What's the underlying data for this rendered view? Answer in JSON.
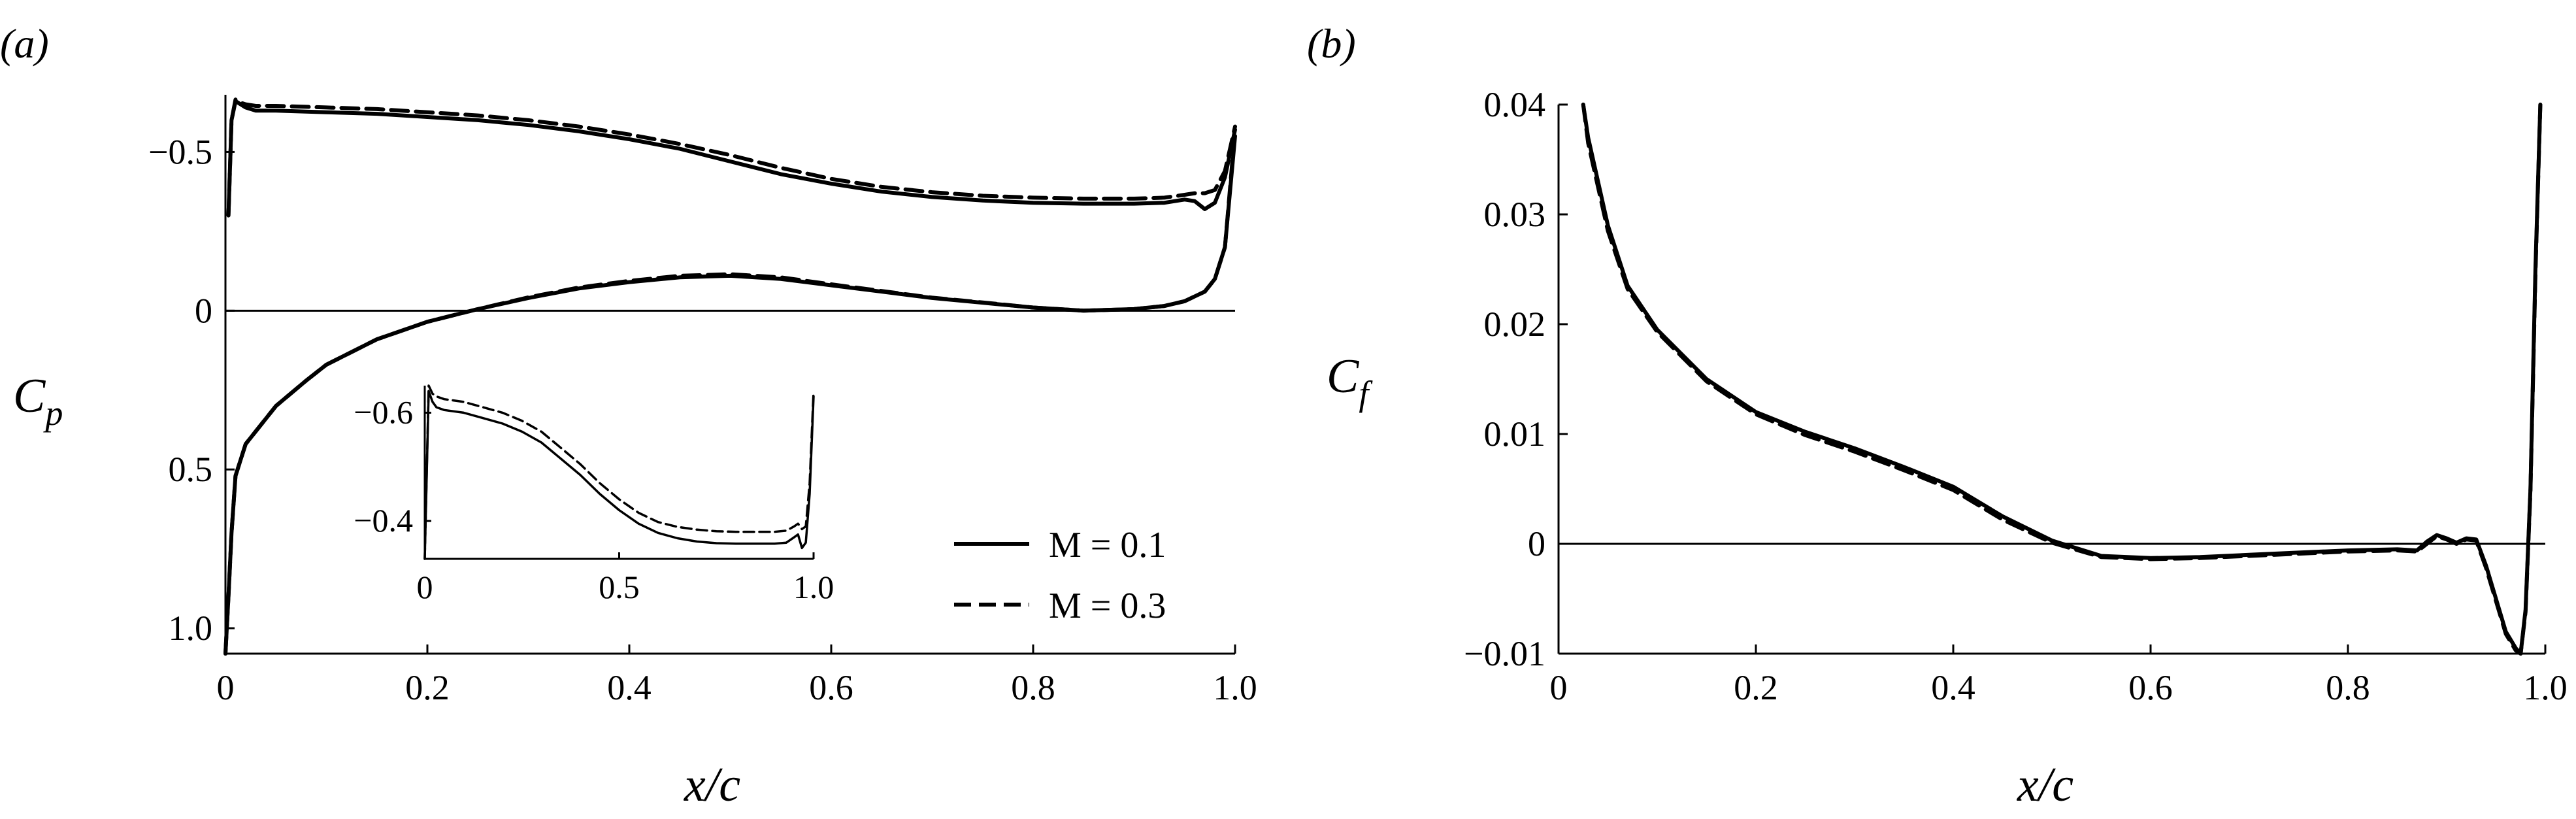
{
  "chart_data": [
    {
      "id": "a",
      "panel_label": "(a)",
      "type": "line",
      "xlabel": "x/c",
      "ylabel": "Cp",
      "xlim": [
        0,
        1.0
      ],
      "ylim": [
        1.08,
        -0.68
      ],
      "y_inverted": true,
      "x_ticks": [
        {
          "value": 0,
          "label": "0"
        },
        {
          "value": 0.2,
          "label": "0.2"
        },
        {
          "value": 0.4,
          "label": "0.4"
        },
        {
          "value": 0.6,
          "label": "0.6"
        },
        {
          "value": 0.8,
          "label": "0.8"
        },
        {
          "value": 1.0,
          "label": "1.0"
        }
      ],
      "y_ticks": [
        {
          "value": -0.5,
          "label": "−0.5"
        },
        {
          "value": 0,
          "label": "0"
        },
        {
          "value": 0.5,
          "label": "0.5"
        },
        {
          "value": 1.0,
          "label": "1.0"
        }
      ],
      "reference_lines": [
        {
          "axis": "y",
          "value": 0
        }
      ],
      "legend": {
        "placement": "bottom-right",
        "entries": [
          {
            "label": "M = 0.1",
            "dash": "solid"
          },
          {
            "label": "M = 0.3",
            "dash": "dashed"
          }
        ]
      },
      "series": [
        {
          "name": "M = 0.1",
          "surface": "suction",
          "dash": "solid",
          "x": [
            0.003,
            0.006,
            0.01,
            0.015,
            0.02,
            0.03,
            0.05,
            0.1,
            0.15,
            0.2,
            0.25,
            0.3,
            0.35,
            0.4,
            0.45,
            0.5,
            0.55,
            0.6,
            0.65,
            0.7,
            0.75,
            0.8,
            0.85,
            0.9,
            0.93,
            0.95,
            0.96,
            0.97,
            0.98,
            0.99,
            1.0
          ],
          "y": [
            -0.3,
            -0.6,
            -0.66,
            -0.65,
            -0.64,
            -0.63,
            -0.63,
            -0.625,
            -0.62,
            -0.61,
            -0.6,
            -0.585,
            -0.565,
            -0.54,
            -0.51,
            -0.47,
            -0.43,
            -0.4,
            -0.375,
            -0.358,
            -0.347,
            -0.34,
            -0.337,
            -0.337,
            -0.34,
            -0.35,
            -0.345,
            -0.32,
            -0.34,
            -0.42,
            -0.57
          ]
        },
        {
          "name": "M = 0.3",
          "surface": "suction",
          "dash": "dashed",
          "x": [
            0.003,
            0.006,
            0.01,
            0.015,
            0.02,
            0.03,
            0.05,
            0.1,
            0.15,
            0.2,
            0.25,
            0.3,
            0.35,
            0.4,
            0.45,
            0.5,
            0.55,
            0.6,
            0.65,
            0.7,
            0.75,
            0.8,
            0.85,
            0.9,
            0.93,
            0.95,
            0.96,
            0.97,
            0.98,
            0.99,
            1.0
          ],
          "y": [
            -0.3,
            -0.6,
            -0.665,
            -0.655,
            -0.65,
            -0.645,
            -0.645,
            -0.64,
            -0.635,
            -0.625,
            -0.615,
            -0.6,
            -0.58,
            -0.555,
            -0.525,
            -0.49,
            -0.45,
            -0.415,
            -0.39,
            -0.373,
            -0.362,
            -0.356,
            -0.353,
            -0.353,
            -0.356,
            -0.365,
            -0.37,
            -0.37,
            -0.38,
            -0.44,
            -0.58
          ]
        },
        {
          "name": "M = 0.1",
          "surface": "pressure",
          "dash": "solid",
          "x": [
            0.0,
            0.003,
            0.006,
            0.01,
            0.02,
            0.03,
            0.05,
            0.08,
            0.1,
            0.15,
            0.2,
            0.25,
            0.3,
            0.35,
            0.4,
            0.45,
            0.5,
            0.55,
            0.6,
            0.65,
            0.7,
            0.75,
            0.8,
            0.85,
            0.9,
            0.93,
            0.95,
            0.97,
            0.98,
            0.99,
            1.0
          ],
          "y": [
            1.08,
            0.9,
            0.7,
            0.52,
            0.42,
            0.38,
            0.3,
            0.22,
            0.17,
            0.09,
            0.035,
            -0.005,
            -0.04,
            -0.07,
            -0.09,
            -0.105,
            -0.11,
            -0.1,
            -0.08,
            -0.06,
            -0.04,
            -0.025,
            -0.01,
            0.0,
            -0.005,
            -0.015,
            -0.03,
            -0.06,
            -0.1,
            -0.2,
            -0.55
          ]
        },
        {
          "name": "M = 0.3",
          "surface": "pressure",
          "dash": "dashed",
          "x": [
            0.0,
            0.003,
            0.006,
            0.01,
            0.02,
            0.03,
            0.05,
            0.08,
            0.1,
            0.15,
            0.2,
            0.25,
            0.3,
            0.35,
            0.4,
            0.45,
            0.5,
            0.55,
            0.6,
            0.65,
            0.7,
            0.75,
            0.8,
            0.85,
            0.9,
            0.93,
            0.95,
            0.97,
            0.98,
            0.99,
            1.0
          ],
          "y": [
            1.08,
            0.9,
            0.7,
            0.52,
            0.42,
            0.38,
            0.3,
            0.22,
            0.17,
            0.09,
            0.035,
            -0.005,
            -0.042,
            -0.073,
            -0.094,
            -0.11,
            -0.115,
            -0.105,
            -0.083,
            -0.062,
            -0.041,
            -0.026,
            -0.01,
            0.0,
            -0.005,
            -0.015,
            -0.03,
            -0.06,
            -0.1,
            -0.2,
            -0.57
          ]
        }
      ],
      "inset": {
        "xlim": [
          0,
          1.0
        ],
        "ylim": [
          -0.33,
          -0.65
        ],
        "y_inverted": true,
        "x_ticks": [
          {
            "value": 0,
            "label": "0"
          },
          {
            "value": 0.5,
            "label": "0.5"
          },
          {
            "value": 1.0,
            "label": "1.0"
          }
        ],
        "y_ticks": [
          {
            "value": -0.6,
            "label": "−0.6"
          },
          {
            "value": -0.4,
            "label": "−0.4"
          }
        ],
        "series": [
          {
            "name": "M = 0.1",
            "dash": "solid",
            "x": [
              0.0,
              0.01,
              0.02,
              0.03,
              0.05,
              0.1,
              0.15,
              0.2,
              0.25,
              0.3,
              0.35,
              0.4,
              0.45,
              0.5,
              0.55,
              0.6,
              0.65,
              0.7,
              0.75,
              0.8,
              0.85,
              0.9,
              0.93,
              0.95,
              0.96,
              0.97,
              0.98,
              0.99,
              1.0
            ],
            "y": [
              -0.33,
              -0.64,
              -0.62,
              -0.61,
              -0.605,
              -0.6,
              -0.59,
              -0.58,
              -0.565,
              -0.545,
              -0.515,
              -0.485,
              -0.45,
              -0.42,
              -0.395,
              -0.378,
              -0.368,
              -0.362,
              -0.359,
              -0.358,
              -0.358,
              -0.358,
              -0.36,
              -0.37,
              -0.375,
              -0.35,
              -0.36,
              -0.45,
              -0.63
            ]
          },
          {
            "name": "M = 0.3",
            "dash": "dashed",
            "x": [
              0.0,
              0.01,
              0.02,
              0.03,
              0.05,
              0.1,
              0.15,
              0.2,
              0.25,
              0.3,
              0.35,
              0.4,
              0.45,
              0.5,
              0.55,
              0.6,
              0.65,
              0.7,
              0.75,
              0.8,
              0.85,
              0.9,
              0.93,
              0.95,
              0.96,
              0.97,
              0.98,
              0.99,
              1.0
            ],
            "y": [
              -0.33,
              -0.65,
              -0.635,
              -0.63,
              -0.625,
              -0.62,
              -0.61,
              -0.6,
              -0.585,
              -0.565,
              -0.535,
              -0.505,
              -0.47,
              -0.44,
              -0.415,
              -0.398,
              -0.389,
              -0.384,
              -0.381,
              -0.38,
              -0.38,
              -0.38,
              -0.382,
              -0.39,
              -0.395,
              -0.385,
              -0.39,
              -0.47,
              -0.64
            ]
          }
        ]
      }
    },
    {
      "id": "b",
      "panel_label": "(b)",
      "type": "line",
      "xlabel": "x/c",
      "ylabel": "Cf",
      "xlim": [
        0,
        1.0
      ],
      "ylim": [
        -0.01,
        0.04
      ],
      "x_ticks": [
        {
          "value": 0,
          "label": "0"
        },
        {
          "value": 0.2,
          "label": "0.2"
        },
        {
          "value": 0.4,
          "label": "0.4"
        },
        {
          "value": 0.6,
          "label": "0.6"
        },
        {
          "value": 0.8,
          "label": "0.8"
        },
        {
          "value": 1.0,
          "label": "1.0"
        }
      ],
      "y_ticks": [
        {
          "value": 0.04,
          "label": "0.04"
        },
        {
          "value": 0.03,
          "label": "0.03"
        },
        {
          "value": 0.02,
          "label": "0.02"
        },
        {
          "value": 0.01,
          "label": "0.01"
        },
        {
          "value": 0,
          "label": "0"
        },
        {
          "value": -0.01,
          "label": "−0.01"
        }
      ],
      "reference_lines": [
        {
          "axis": "y",
          "value": 0
        }
      ],
      "series": [
        {
          "name": "M = 0.1",
          "dash": "solid",
          "x": [
            0.025,
            0.03,
            0.04,
            0.05,
            0.07,
            0.1,
            0.15,
            0.2,
            0.25,
            0.3,
            0.35,
            0.4,
            0.45,
            0.5,
            0.55,
            0.6,
            0.65,
            0.7,
            0.75,
            0.8,
            0.85,
            0.87,
            0.88,
            0.89,
            0.9,
            0.91,
            0.92,
            0.93,
            0.94,
            0.95,
            0.96,
            0.97,
            0.975,
            0.98,
            0.985,
            0.99,
            0.995
          ],
          "y": [
            0.04,
            0.037,
            0.033,
            0.029,
            0.0235,
            0.0195,
            0.015,
            0.012,
            0.0102,
            0.0087,
            0.007,
            0.0052,
            0.0025,
            0.0003,
            -0.0011,
            -0.0013,
            -0.0012,
            -0.001,
            -0.0008,
            -0.0006,
            -0.0005,
            -0.0006,
            0.0002,
            0.0008,
            0.0005,
            0.0001,
            0.0005,
            0.0004,
            -0.002,
            -0.005,
            -0.008,
            -0.0095,
            -0.01,
            -0.006,
            0.005,
            0.025,
            0.04
          ]
        },
        {
          "name": "M = 0.3",
          "dash": "dashed",
          "x": [
            0.025,
            0.03,
            0.04,
            0.05,
            0.07,
            0.1,
            0.15,
            0.2,
            0.25,
            0.3,
            0.35,
            0.4,
            0.45,
            0.5,
            0.55,
            0.6,
            0.65,
            0.7,
            0.75,
            0.8,
            0.85,
            0.87,
            0.88,
            0.89,
            0.9,
            0.91,
            0.92,
            0.93,
            0.94,
            0.95,
            0.96,
            0.97,
            0.975,
            0.98,
            0.985,
            0.99,
            0.995
          ],
          "y": [
            0.04,
            0.0365,
            0.0325,
            0.0285,
            0.0232,
            0.0193,
            0.0148,
            0.0118,
            0.0099,
            0.0084,
            0.0067,
            0.0049,
            0.0022,
            0.0001,
            -0.0012,
            -0.0014,
            -0.0013,
            -0.0011,
            -0.0009,
            -0.0007,
            -0.0006,
            -0.0007,
            0.0,
            0.0007,
            0.0004,
            0.0,
            0.0004,
            0.0003,
            -0.0022,
            -0.0052,
            -0.0082,
            -0.0097,
            -0.01,
            -0.0062,
            0.0048,
            0.0245,
            0.04
          ]
        }
      ]
    }
  ]
}
